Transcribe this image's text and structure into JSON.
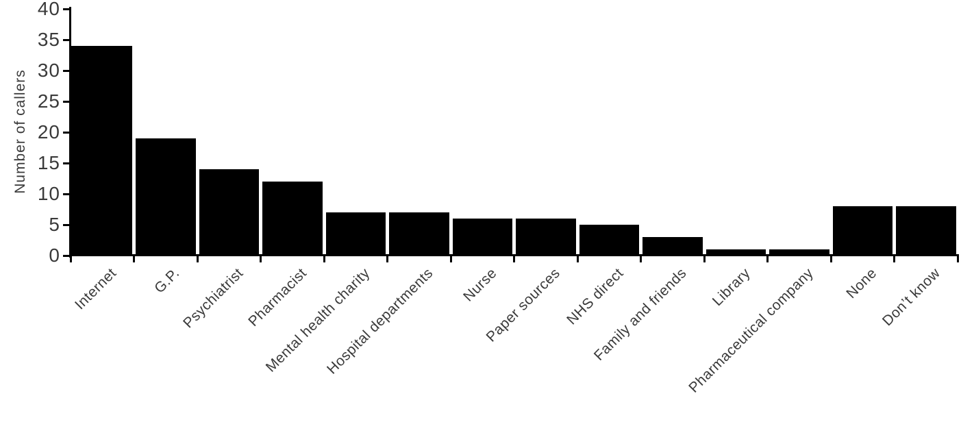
{
  "chart_data": {
    "type": "bar",
    "title": "",
    "xlabel": "",
    "ylabel": "Number of callers",
    "categories": [
      "Internet",
      "G.P.",
      "Psychiatrist",
      "Pharmacist",
      "Mental health charity",
      "Hospital departments",
      "Nurse",
      "Paper sources",
      "NHS direct",
      "Family and friends",
      "Library",
      "Pharmaceutical company",
      "None",
      "Don’t know"
    ],
    "values": [
      34,
      19,
      14,
      12,
      7,
      7,
      6,
      6,
      5,
      3,
      1,
      1,
      8,
      8
    ],
    "ylim": [
      0,
      40
    ],
    "yticks": [
      0,
      5,
      10,
      15,
      20,
      25,
      30,
      35,
      40
    ],
    "x_label_rotation_deg": -45,
    "bar_color": "#000000",
    "axis_color": "#000000",
    "text_color": "#3a3a3a",
    "grid": false,
    "legend": false
  }
}
